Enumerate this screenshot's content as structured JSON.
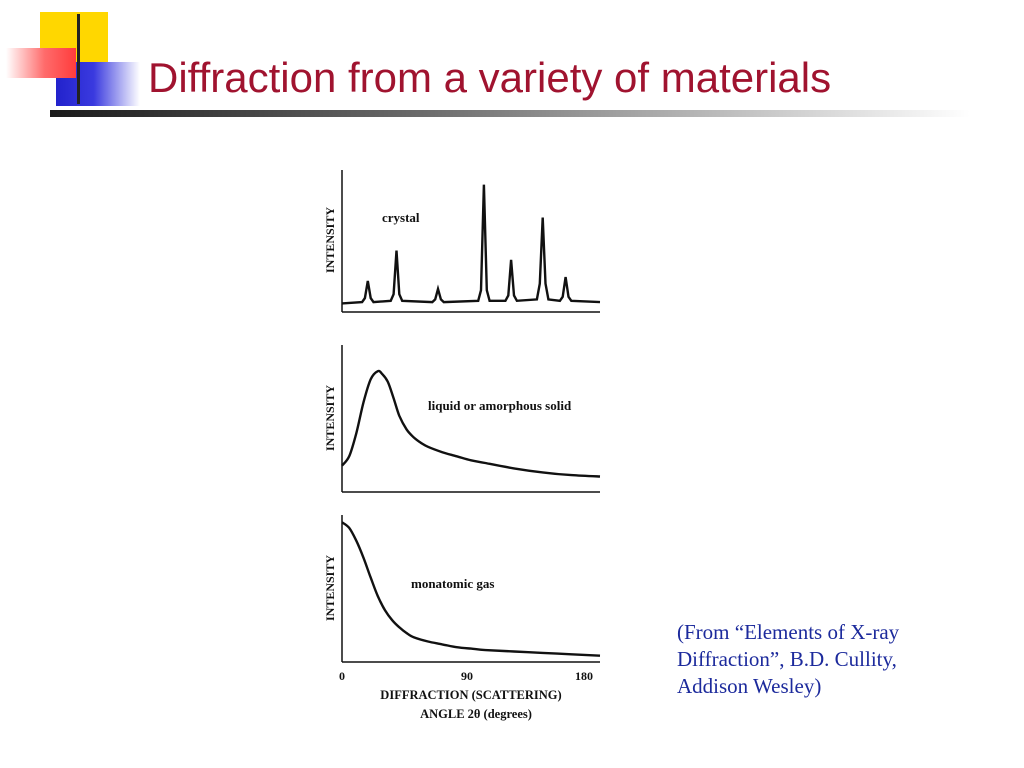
{
  "slide": {
    "title": "Diffraction from a variety of materials",
    "citation_line1": "(From “Elements of X-ray",
    "citation_line2": "Diffraction”, B.D. Cullity,",
    "citation_line3": "Addison Wesley)"
  },
  "colors": {
    "title": "#a0132f",
    "citation": "#1c2a9c",
    "logo_yellow": "#ffd700",
    "logo_blue": "#2222cc",
    "logo_red": "#ff3c3c"
  },
  "chart_data": [
    {
      "type": "line",
      "label": "crystal",
      "ylabel": "INTENSITY",
      "xlim": [
        0,
        180
      ],
      "ylim": [
        0,
        1
      ],
      "series": [
        {
          "name": "crystal",
          "x": [
            0,
            14,
            16,
            18,
            20,
            22,
            34,
            36,
            38,
            40,
            42,
            63,
            65,
            67,
            69,
            71,
            95,
            97,
            99,
            101,
            103,
            114,
            116,
            118,
            120,
            122,
            136,
            138,
            140,
            142,
            144,
            152,
            154,
            156,
            158,
            160,
            180
          ],
          "y": [
            0.05,
            0.06,
            0.09,
            0.22,
            0.09,
            0.06,
            0.07,
            0.12,
            0.45,
            0.12,
            0.07,
            0.06,
            0.08,
            0.16,
            0.08,
            0.06,
            0.07,
            0.15,
            0.95,
            0.15,
            0.07,
            0.07,
            0.11,
            0.38,
            0.11,
            0.07,
            0.08,
            0.2,
            0.7,
            0.2,
            0.08,
            0.07,
            0.1,
            0.25,
            0.1,
            0.07,
            0.06
          ]
        }
      ]
    },
    {
      "type": "line",
      "label": "liquid or amorphous solid",
      "ylabel": "INTENSITY",
      "xlim": [
        0,
        180
      ],
      "ylim": [
        0,
        1
      ],
      "series": [
        {
          "name": "liquid or amorphous solid",
          "x": [
            0,
            5,
            10,
            15,
            20,
            25,
            28,
            32,
            36,
            40,
            45,
            50,
            55,
            60,
            70,
            80,
            90,
            100,
            120,
            140,
            160,
            180
          ],
          "y": [
            0.18,
            0.25,
            0.42,
            0.65,
            0.82,
            0.88,
            0.86,
            0.8,
            0.68,
            0.55,
            0.45,
            0.39,
            0.35,
            0.32,
            0.28,
            0.25,
            0.22,
            0.2,
            0.16,
            0.13,
            0.11,
            0.1
          ]
        }
      ]
    },
    {
      "type": "line",
      "label": "monatomic gas",
      "ylabel": "INTENSITY",
      "xlabel": "DIFFRACTION  (SCATTERING)\nANGLE 2θ (degrees)",
      "xticks": [
        "0",
        "90",
        "180"
      ],
      "xlim": [
        0,
        180
      ],
      "ylim": [
        0,
        1
      ],
      "series": [
        {
          "name": "monatomic gas",
          "x": [
            0,
            5,
            10,
            15,
            20,
            25,
            30,
            35,
            40,
            45,
            50,
            60,
            70,
            80,
            90,
            100,
            120,
            140,
            160,
            180
          ],
          "y": [
            0.97,
            0.93,
            0.84,
            0.72,
            0.58,
            0.45,
            0.35,
            0.28,
            0.23,
            0.19,
            0.16,
            0.13,
            0.11,
            0.09,
            0.08,
            0.07,
            0.06,
            0.05,
            0.04,
            0.03
          ]
        }
      ]
    }
  ]
}
